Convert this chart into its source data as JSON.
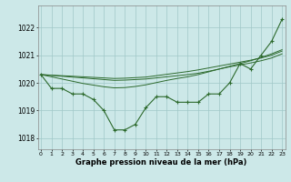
{
  "hours": [
    0,
    1,
    2,
    3,
    4,
    5,
    6,
    7,
    8,
    9,
    10,
    11,
    12,
    13,
    14,
    15,
    16,
    17,
    18,
    19,
    20,
    21,
    22,
    23
  ],
  "main_line": [
    1020.3,
    1019.8,
    1019.8,
    1019.6,
    1019.6,
    1019.4,
    1019.0,
    1018.3,
    1018.3,
    1018.5,
    1019.1,
    1019.5,
    1019.5,
    1019.3,
    1019.3,
    1019.3,
    1019.6,
    1019.6,
    1020.0,
    1020.7,
    1020.5,
    1021.0,
    1021.5,
    1022.3
  ],
  "trend_line1": [
    1020.3,
    1020.27,
    1020.24,
    1020.21,
    1020.18,
    1020.15,
    1020.12,
    1020.09,
    1020.1,
    1020.12,
    1020.14,
    1020.18,
    1020.22,
    1020.26,
    1020.3,
    1020.35,
    1020.42,
    1020.5,
    1020.58,
    1020.65,
    1020.72,
    1020.8,
    1020.9,
    1021.05
  ],
  "trend_line2": [
    1020.3,
    1020.28,
    1020.26,
    1020.24,
    1020.22,
    1020.2,
    1020.18,
    1020.16,
    1020.17,
    1020.19,
    1020.21,
    1020.26,
    1020.31,
    1020.36,
    1020.41,
    1020.47,
    1020.54,
    1020.61,
    1020.68,
    1020.75,
    1020.82,
    1020.9,
    1021.0,
    1021.15
  ],
  "trend_line3": [
    1020.3,
    1020.22,
    1020.14,
    1020.06,
    1019.98,
    1019.92,
    1019.86,
    1019.82,
    1019.83,
    1019.87,
    1019.93,
    1020.01,
    1020.09,
    1020.16,
    1020.22,
    1020.3,
    1020.4,
    1020.5,
    1020.6,
    1020.7,
    1020.8,
    1020.92,
    1021.05,
    1021.2
  ],
  "line_color": "#2d6a2d",
  "bg_color": "#cce8e8",
  "grid_color": "#a0c8c8",
  "xlabel": "Graphe pression niveau de la mer (hPa)",
  "ylabel_ticks": [
    1018,
    1019,
    1020,
    1021,
    1022
  ],
  "ylim": [
    1017.6,
    1022.8
  ],
  "xlim": [
    -0.3,
    23.3
  ]
}
